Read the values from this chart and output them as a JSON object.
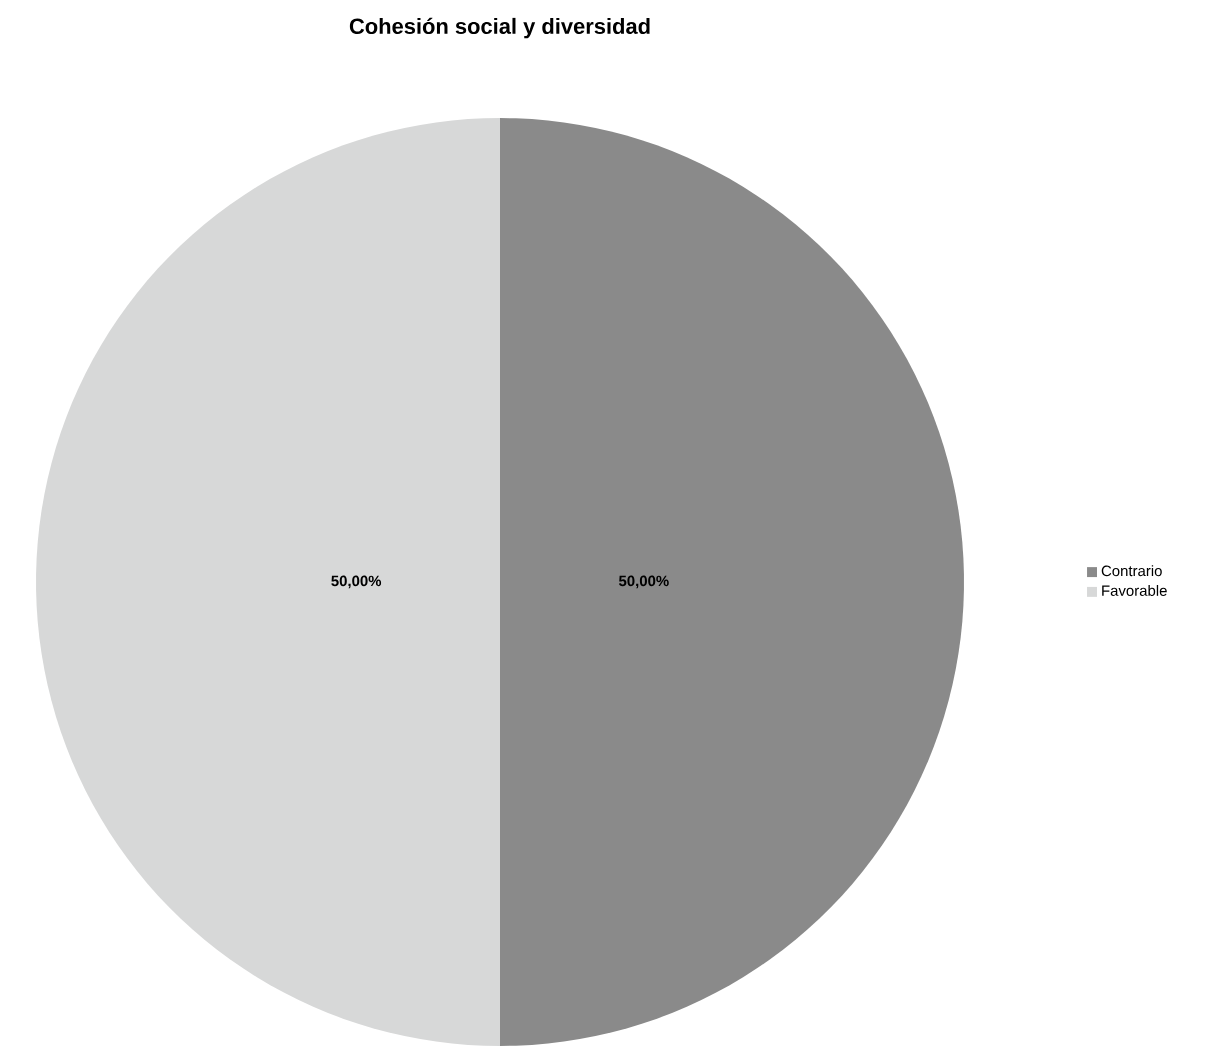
{
  "chart_data": {
    "type": "pie",
    "title": "Cohesión social y diversidad",
    "categories": [
      "Contrario",
      "Favorable"
    ],
    "values": [
      50,
      50
    ],
    "value_labels": [
      "50,00%",
      "50,00%"
    ],
    "colors": [
      "#8a8a8a",
      "#d7d8d8"
    ],
    "legend": "right"
  }
}
